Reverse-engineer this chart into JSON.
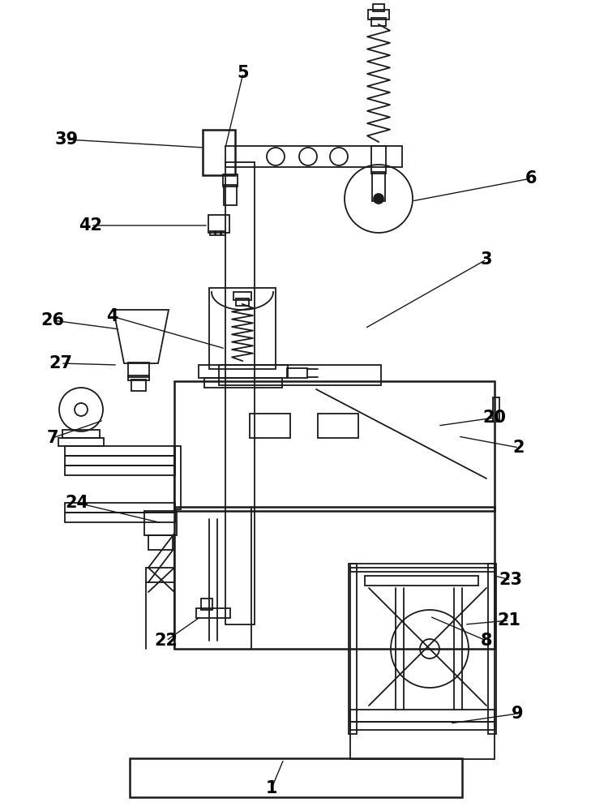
{
  "bg": "#ffffff",
  "lc": "#1a1a1a",
  "lw": 1.3,
  "lw2": 1.8,
  "figw": 7.29,
  "figh": 10.0,
  "dpi": 100
}
